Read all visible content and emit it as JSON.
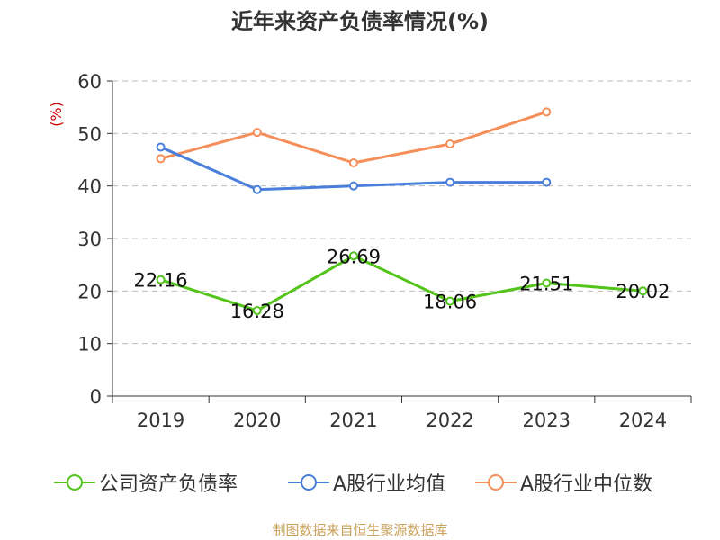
{
  "title": "近年来资产负债率情况(%)",
  "footer": "制图数据来自恒生聚源数据库",
  "chart_data": {
    "type": "line",
    "title": "近年来资产负债率情况(%)",
    "ylabel": "(%)",
    "xlabel": "",
    "categories": [
      "2019",
      "2020",
      "2021",
      "2022",
      "2023",
      "2024"
    ],
    "ylim": [
      0,
      60
    ],
    "yticks": [
      0,
      10,
      20,
      30,
      40,
      50,
      60
    ],
    "grid": true,
    "legend_position": "bottom",
    "series": [
      {
        "name": "公司资产负债率",
        "color": "#52c41a",
        "values": [
          22.16,
          16.28,
          26.69,
          18.06,
          21.51,
          20.02
        ],
        "labels": [
          "22.16",
          "16.28",
          "26.69",
          "18.06",
          "21.51",
          "20.02"
        ]
      },
      {
        "name": "A股行业均值",
        "color": "#4a7fdc",
        "values": [
          47.4,
          39.3,
          40.0,
          40.7,
          40.7,
          null
        ]
      },
      {
        "name": "A股行业中位数",
        "color": "#f68e5a",
        "values": [
          45.2,
          50.2,
          44.4,
          48.0,
          54.1,
          null
        ]
      }
    ]
  }
}
